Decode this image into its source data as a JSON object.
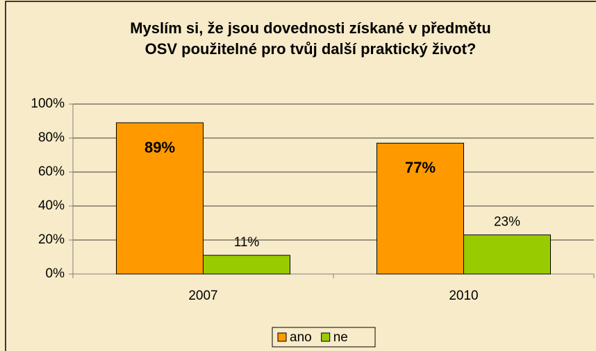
{
  "chart_data": {
    "type": "bar",
    "title": [
      "Myslím si, že jsou dovednosti získané v předmětu",
      "OSV použitelné pro tvůj další praktický život?"
    ],
    "categories": [
      "2007",
      "2010"
    ],
    "series": [
      {
        "name": "ano",
        "color": "#ff9900",
        "values": [
          89,
          77
        ],
        "value_labels": [
          "89%",
          "77%"
        ]
      },
      {
        "name": "ne",
        "color": "#99cc00",
        "values": [
          11,
          23
        ],
        "value_labels": [
          "11%",
          "23%"
        ]
      }
    ],
    "ylim": [
      0,
      100
    ],
    "yticks": [
      {
        "value": 0,
        "label": "0%"
      },
      {
        "value": 20,
        "label": "20%"
      },
      {
        "value": 40,
        "label": "40%"
      },
      {
        "value": 60,
        "label": "60%"
      },
      {
        "value": 80,
        "label": "80%"
      },
      {
        "value": 100,
        "label": "100%"
      }
    ],
    "grid": true,
    "legend": "bottom"
  }
}
